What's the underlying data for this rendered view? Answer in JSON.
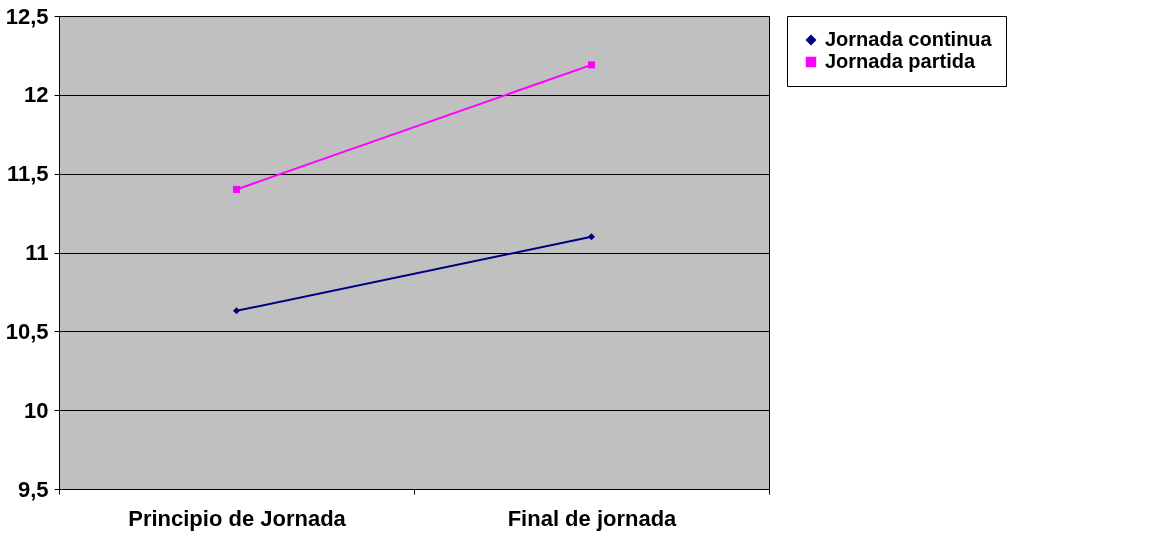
{
  "chart_data": {
    "type": "line",
    "categories": [
      "Principio de Jornada",
      "Final de jornada"
    ],
    "series": [
      {
        "name": "Jornada continua",
        "color": "#000080",
        "values": [
          10.63,
          11.1
        ],
        "marker": "diamond"
      },
      {
        "name": "Jornada partida",
        "color": "#ff00ff",
        "values": [
          11.4,
          12.19
        ],
        "marker": "square"
      }
    ],
    "ylim": [
      9.5,
      12.5
    ],
    "yticks": [
      {
        "value": 9.5,
        "label": "9,5"
      },
      10,
      {
        "value": 10.5,
        "label": "10,5"
      },
      11,
      {
        "value": 11.5,
        "label": "11,5"
      },
      12,
      {
        "value": 12.5,
        "label": "12,5"
      }
    ],
    "grid": "y",
    "legend": "right"
  }
}
